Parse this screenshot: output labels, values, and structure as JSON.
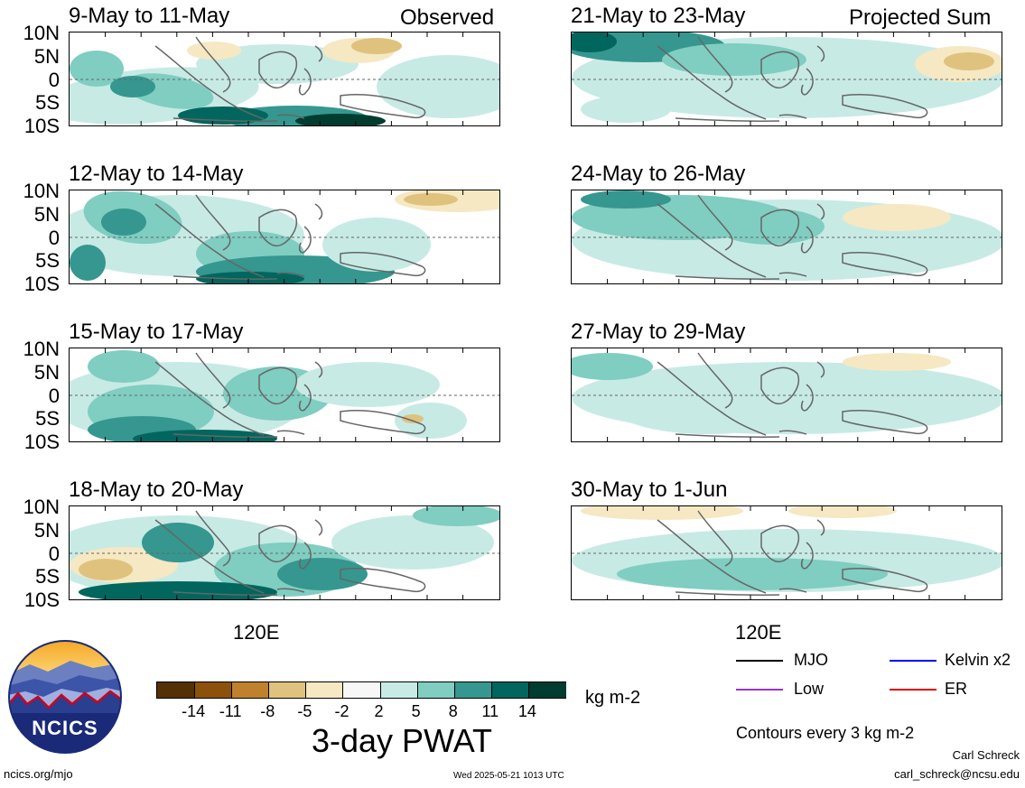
{
  "left_header_right": "Observed",
  "right_header_right": "Projected Sum",
  "y_labels": [
    "10N",
    "5N",
    "0",
    "5S",
    "10S"
  ],
  "x_label": "120E",
  "panels_left": [
    {
      "title": "9-May to 11-May"
    },
    {
      "title": "12-May to 14-May"
    },
    {
      "title": "15-May to 17-May"
    },
    {
      "title": "18-May to 20-May"
    }
  ],
  "panels_right": [
    {
      "title": "21-May to 23-May"
    },
    {
      "title": "24-May to 26-May"
    },
    {
      "title": "27-May to 29-May"
    },
    {
      "title": "30-May to 1-Jun"
    }
  ],
  "colorbar": {
    "ticks": [
      "-14",
      "-11",
      "-8",
      "-5",
      "-2",
      "2",
      "5",
      "8",
      "11",
      "14"
    ],
    "colors": [
      "#543005",
      "#8c510a",
      "#bf812d",
      "#dfc27d",
      "#f6e8c3",
      "#f7f7f7",
      "#c7eae5",
      "#80cdc1",
      "#35978f",
      "#01665e",
      "#003c30"
    ],
    "units": "kg m-2",
    "title": "3-day PWAT"
  },
  "legend": {
    "items": [
      {
        "label": "MJO",
        "color": "#000000"
      },
      {
        "label": "Kelvin x2",
        "color": "#0000ff"
      },
      {
        "label": "Low",
        "color": "#9933cc"
      },
      {
        "label": "ER",
        "color": "#dd0000"
      }
    ],
    "contours_note": "Contours every 3 kg m-2"
  },
  "logo": {
    "text": "NCICS"
  },
  "footer": {
    "left": "ncics.org/mjo",
    "center": "Wed 2025-05-21 1013 UTC",
    "author": "Carl Schreck",
    "email": "carl_schreck@ncsu.edu"
  }
}
